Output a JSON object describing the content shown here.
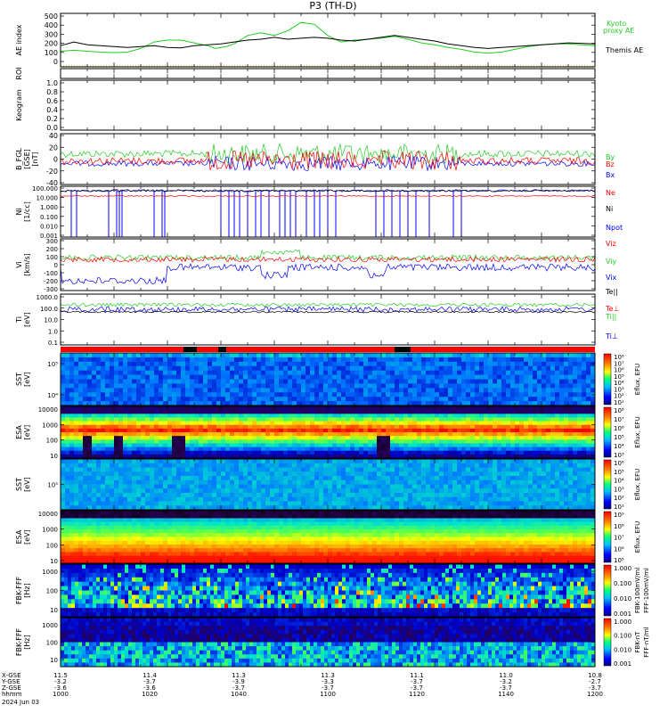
{
  "title": "P3 (TH-D)",
  "date_label": "2024 Jun 03",
  "colors": {
    "black": "#000000",
    "green": "#22cc22",
    "red": "#ff0000",
    "blue": "#0000ff",
    "orange": "#ddaa00"
  },
  "chart_data": [
    {
      "type": "line",
      "panel": "ae",
      "ylabel": "AE index",
      "yticks": [
        "500",
        "400",
        "300",
        "200",
        "100",
        "0"
      ],
      "ylim": [
        0,
        500
      ],
      "legend": [
        "Kyoto",
        "proxy AE",
        "Themis AE"
      ],
      "series": [
        {
          "name": "Kyoto proxy AE",
          "color": "green",
          "x": [
            1000,
            1005,
            1010,
            1015,
            1020,
            1025,
            1030,
            1035,
            1040,
            1045,
            1050,
            1055,
            1058,
            1062,
            1065,
            1070,
            1075,
            1080,
            1085,
            1090,
            1095,
            1100,
            1105,
            1110,
            1115,
            1120,
            1125,
            1130,
            1135,
            1140,
            1145,
            1150,
            1155,
            1160,
            1165,
            1170,
            1175,
            1180,
            1185,
            1190,
            1195,
            1200
          ],
          "values": [
            130,
            140,
            130,
            120,
            115,
            120,
            160,
            230,
            250,
            250,
            220,
            190,
            160,
            180,
            210,
            300,
            330,
            300,
            350,
            440,
            420,
            300,
            230,
            250,
            260,
            270,
            290,
            260,
            220,
            200,
            170,
            150,
            120,
            110,
            120,
            150,
            180,
            200,
            210,
            210,
            200,
            190
          ]
        },
        {
          "name": "Themis AE",
          "color": "black",
          "x": [
            1000,
            1005,
            1010,
            1015,
            1020,
            1025,
            1030,
            1035,
            1040,
            1045,
            1050,
            1055,
            1060,
            1065,
            1070,
            1075,
            1080,
            1085,
            1090,
            1095,
            1100,
            1105,
            1110,
            1115,
            1120,
            1125,
            1130,
            1135,
            1140,
            1145,
            1150,
            1155,
            1160,
            1165,
            1170,
            1175,
            1180,
            1185,
            1190,
            1195,
            1200
          ],
          "values": [
            190,
            230,
            200,
            190,
            180,
            170,
            180,
            190,
            170,
            165,
            190,
            200,
            210,
            230,
            250,
            260,
            280,
            260,
            270,
            280,
            270,
            250,
            240,
            260,
            280,
            300,
            280,
            260,
            240,
            210,
            190,
            170,
            160,
            170,
            180,
            190,
            200,
            210,
            220,
            215,
            210
          ]
        }
      ]
    },
    {
      "type": "line",
      "panel": "roi",
      "ylabel": "ROI",
      "yticks": [],
      "series": []
    },
    {
      "type": "line",
      "panel": "keogram",
      "ylabel": "Keogram",
      "yticks": [
        "1.0",
        "0.8",
        "0.6",
        "0.4",
        "0.2",
        "0.0"
      ],
      "ylim": [
        0,
        1
      ],
      "series": []
    },
    {
      "type": "line",
      "panel": "bfgl",
      "ylabel": "B_FGL",
      "ylabel2": "[GSE]",
      "ylabel3": "[nT]",
      "yticks": [
        "40",
        "20",
        "0",
        "-20",
        "-40"
      ],
      "ylim": [
        -40,
        40
      ],
      "series": [
        {
          "name": "Bz",
          "color": "red"
        },
        {
          "name": "By",
          "color": "green"
        },
        {
          "name": "Bx",
          "color": "blue"
        }
      ]
    },
    {
      "type": "line",
      "panel": "ni",
      "ylabel": "Ni",
      "ylabel2": "[1/cc]",
      "yticks": [
        "100.000",
        "10.000",
        "1.000",
        "0.100",
        "0.010",
        "0.001"
      ],
      "log": true,
      "series": [
        {
          "name": "Ne",
          "color": "red"
        },
        {
          "name": "Ni",
          "color": "black"
        },
        {
          "name": "Npot",
          "color": "blue"
        }
      ]
    },
    {
      "type": "line",
      "panel": "vi",
      "ylabel": "Vi",
      "ylabel2": "[km/s]",
      "yticks": [
        "300",
        "200",
        "100",
        "0",
        "-100",
        "-200",
        "-300"
      ],
      "ylim": [
        -300,
        300
      ],
      "series": [
        {
          "name": "Viz",
          "color": "red"
        },
        {
          "name": "Viy",
          "color": "green"
        },
        {
          "name": "Vix",
          "color": "blue"
        }
      ]
    },
    {
      "type": "line",
      "panel": "ti",
      "ylabel": "Ti",
      "ylabel2": "[eV]",
      "yticks": [
        "1000.0",
        "100.0",
        "10.0",
        "1.0",
        "0.1"
      ],
      "log": true,
      "series": [
        {
          "name": "Te||",
          "color": "black"
        },
        {
          "name": "Te⊥",
          "color": "red"
        },
        {
          "name": "Ti||",
          "color": "green"
        },
        {
          "name": "Ti⊥",
          "color": "blue"
        }
      ]
    },
    {
      "type": "heatmap",
      "panel": "sst_i",
      "ylabel": "SST",
      "ylabel2": "[eV]",
      "yticks": [
        "10⁵",
        "10⁴"
      ],
      "cbar_label": "Eflux, EFU",
      "cbar_ticks": [
        "10⁸",
        "10⁷",
        "10⁶",
        "10⁵",
        "10⁴",
        "10³",
        "10²",
        "10¹"
      ]
    },
    {
      "type": "heatmap",
      "panel": "esa_i",
      "ylabel": "ESA",
      "ylabel2": "[eV]",
      "yticks": [
        "10000",
        "1000",
        "100",
        "10"
      ],
      "cbar_label": "Eflux, EFU",
      "cbar_ticks": [
        "10⁸",
        "10⁷",
        "10⁶",
        "10⁵",
        "10⁴",
        "10³"
      ]
    },
    {
      "type": "heatmap",
      "panel": "sst_e",
      "ylabel": "SST",
      "ylabel2": "[eV]",
      "yticks": [
        "10⁵"
      ],
      "cbar_label": "Eflux, EFU",
      "cbar_ticks": [
        "10⁶",
        "10⁵",
        "10⁴",
        "10³",
        "10²",
        "10¹"
      ]
    },
    {
      "type": "heatmap",
      "panel": "esa_e",
      "ylabel": "ESA",
      "ylabel2": "[eV]",
      "yticks": [
        "10000",
        "1000",
        "100",
        "10"
      ],
      "cbar_label": "Eflux, EFU",
      "cbar_ticks": [
        "10⁹",
        "10⁸",
        "10⁷",
        "10⁶",
        "10⁵"
      ]
    },
    {
      "type": "heatmap",
      "panel": "fbk_fff",
      "ylabel": "FBK-FFF",
      "ylabel2": "[Hz]",
      "yticks": [
        "1000",
        "100",
        "10"
      ],
      "cbar_label": "FBK-100mV/ml",
      "cbar_label2": "FFF-100mV/ml",
      "cbar_ticks": [
        "1.000",
        "0.100",
        "0.010",
        "0.001"
      ]
    },
    {
      "type": "heatmap",
      "panel": "fbk_fff2",
      "ylabel": "FBK-FFF",
      "ylabel2": "[Hz]",
      "yticks": [
        "1000",
        "100",
        "10"
      ],
      "cbar_label": "FBK-nT",
      "cbar_label2": "FFF-nT/ml",
      "cbar_ticks": [
        "1.000",
        "0.100",
        "0.010",
        "0.001"
      ]
    }
  ],
  "x_axis": {
    "row_labels": [
      "X-GSE",
      "Y-GSE",
      "Z-GSE",
      "hhmm",
      "2024 Jun 03"
    ],
    "ticks": [
      {
        "x": "11.5",
        "y": "-3.2",
        "z": "-3.6",
        "t": "1000"
      },
      {
        "x": "11.4",
        "y": "-3.7",
        "z": "-3.6",
        "t": "1020"
      },
      {
        "x": "11.3",
        "y": "-3.9",
        "z": "-3.7",
        "t": "1040"
      },
      {
        "x": "11.3",
        "y": "-3.3",
        "z": "-3.7",
        "t": "1100"
      },
      {
        "x": "11.1",
        "y": "-3.7",
        "z": "-3.7",
        "t": "1120"
      },
      {
        "x": "11.0",
        "y": "-3.2",
        "z": "-3.7",
        "t": "1140"
      },
      {
        "x": "10.8",
        "y": "-2.7",
        "z": "-3.7",
        "t": "1200"
      }
    ]
  }
}
